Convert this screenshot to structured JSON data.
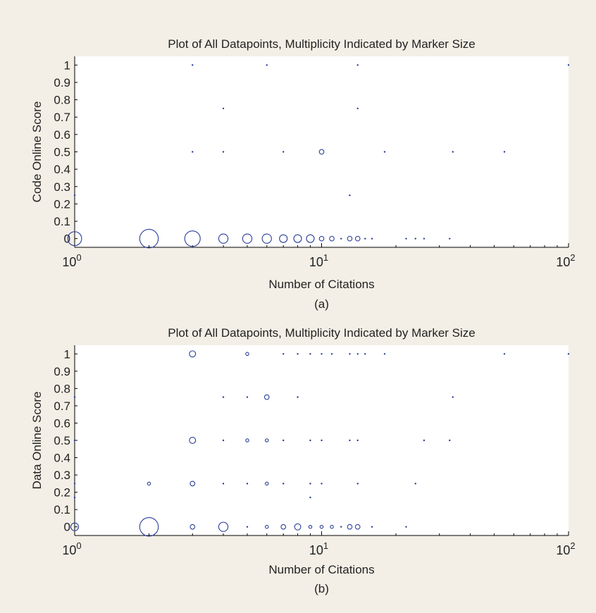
{
  "figure": {
    "background": "#f3efe6",
    "axes_background": "#ffffff",
    "marker_color": "#2a3f9a"
  },
  "chart_data": [
    {
      "id": "a",
      "type": "scatter",
      "title": "Plot of All Datapoints, Multiplicity Indicated by Marker Size",
      "xlabel": "Number of Citations",
      "ylabel": "Code Online Score",
      "caption": "(a)",
      "xscale": "log",
      "xlim": [
        1,
        100
      ],
      "ylim": [
        -0.05,
        1.05
      ],
      "xticks": [
        {
          "value": 1,
          "base": "10",
          "exp": "0"
        },
        {
          "value": 10,
          "base": "10",
          "exp": "1"
        },
        {
          "value": 100,
          "base": "10",
          "exp": "2"
        }
      ],
      "yticks": [
        "0",
        "0.1",
        "0.2",
        "0.3",
        "0.4",
        "0.5",
        "0.6",
        "0.7",
        "0.8",
        "0.9",
        "1"
      ],
      "grid": false,
      "legend": "none",
      "marker_size_meaning": "multiplicity",
      "points": [
        {
          "x": 3,
          "y": 1,
          "n": 1
        },
        {
          "x": 6,
          "y": 1,
          "n": 1
        },
        {
          "x": 14,
          "y": 1,
          "n": 1
        },
        {
          "x": 100,
          "y": 1,
          "n": 1
        },
        {
          "x": 4,
          "y": 0.75,
          "n": 1
        },
        {
          "x": 14,
          "y": 0.75,
          "n": 1
        },
        {
          "x": 3,
          "y": 0.5,
          "n": 1
        },
        {
          "x": 4,
          "y": 0.5,
          "n": 1
        },
        {
          "x": 7,
          "y": 0.5,
          "n": 1
        },
        {
          "x": 10,
          "y": 0.5,
          "n": 3
        },
        {
          "x": 18,
          "y": 0.5,
          "n": 1
        },
        {
          "x": 34,
          "y": 0.5,
          "n": 1
        },
        {
          "x": 55,
          "y": 0.5,
          "n": 1
        },
        {
          "x": 1,
          "y": 0.25,
          "n": 1
        },
        {
          "x": 13,
          "y": 0.25,
          "n": 1
        },
        {
          "x": 1,
          "y": 0,
          "n": 9
        },
        {
          "x": 2,
          "y": 0,
          "n": 12
        },
        {
          "x": 3,
          "y": 0,
          "n": 10
        },
        {
          "x": 4,
          "y": 0,
          "n": 6
        },
        {
          "x": 5,
          "y": 0,
          "n": 6
        },
        {
          "x": 6,
          "y": 0,
          "n": 6
        },
        {
          "x": 7,
          "y": 0,
          "n": 5
        },
        {
          "x": 8,
          "y": 0,
          "n": 5
        },
        {
          "x": 9,
          "y": 0,
          "n": 5
        },
        {
          "x": 10,
          "y": 0,
          "n": 3
        },
        {
          "x": 11,
          "y": 0,
          "n": 3
        },
        {
          "x": 12,
          "y": 0,
          "n": 1
        },
        {
          "x": 13,
          "y": 0,
          "n": 3
        },
        {
          "x": 14,
          "y": 0,
          "n": 3
        },
        {
          "x": 15,
          "y": 0,
          "n": 1
        },
        {
          "x": 16,
          "y": 0,
          "n": 1
        },
        {
          "x": 22,
          "y": 0,
          "n": 1
        },
        {
          "x": 24,
          "y": 0,
          "n": 1
        },
        {
          "x": 26,
          "y": 0,
          "n": 1
        },
        {
          "x": 33,
          "y": 0,
          "n": 1
        }
      ]
    },
    {
      "id": "b",
      "type": "scatter",
      "title": "Plot of All Datapoints, Multiplicity Indicated by Marker Size",
      "xlabel": "Number of Citations",
      "ylabel": "Data Online Score",
      "caption": "(b)",
      "xscale": "log",
      "xlim": [
        1,
        100
      ],
      "ylim": [
        -0.05,
        1.05
      ],
      "xticks": [
        {
          "value": 1,
          "base": "10",
          "exp": "0"
        },
        {
          "value": 10,
          "base": "10",
          "exp": "1"
        },
        {
          "value": 100,
          "base": "10",
          "exp": "2"
        }
      ],
      "yticks": [
        "0",
        "0.1",
        "0.2",
        "0.3",
        "0.4",
        "0.5",
        "0.6",
        "0.7",
        "0.8",
        "0.9",
        "1"
      ],
      "grid": false,
      "legend": "none",
      "marker_size_meaning": "multiplicity",
      "points": [
        {
          "x": 3,
          "y": 1,
          "n": 4
        },
        {
          "x": 5,
          "y": 1,
          "n": 2
        },
        {
          "x": 7,
          "y": 1,
          "n": 1
        },
        {
          "x": 8,
          "y": 1,
          "n": 1
        },
        {
          "x": 9,
          "y": 1,
          "n": 1
        },
        {
          "x": 10,
          "y": 1,
          "n": 1
        },
        {
          "x": 11,
          "y": 1,
          "n": 1
        },
        {
          "x": 13,
          "y": 1,
          "n": 1
        },
        {
          "x": 14,
          "y": 1,
          "n": 1
        },
        {
          "x": 15,
          "y": 1,
          "n": 1
        },
        {
          "x": 18,
          "y": 1,
          "n": 1
        },
        {
          "x": 55,
          "y": 1,
          "n": 1
        },
        {
          "x": 100,
          "y": 1,
          "n": 1
        },
        {
          "x": 1,
          "y": 0.75,
          "n": 1
        },
        {
          "x": 4,
          "y": 0.75,
          "n": 1
        },
        {
          "x": 5,
          "y": 0.75,
          "n": 1
        },
        {
          "x": 6,
          "y": 0.75,
          "n": 3
        },
        {
          "x": 8,
          "y": 0.75,
          "n": 1
        },
        {
          "x": 34,
          "y": 0.75,
          "n": 1
        },
        {
          "x": 1,
          "y": 0.5,
          "n": 1
        },
        {
          "x": 3,
          "y": 0.5,
          "n": 4
        },
        {
          "x": 4,
          "y": 0.5,
          "n": 1
        },
        {
          "x": 5,
          "y": 0.5,
          "n": 2
        },
        {
          "x": 6,
          "y": 0.5,
          "n": 2
        },
        {
          "x": 7,
          "y": 0.5,
          "n": 1
        },
        {
          "x": 9,
          "y": 0.5,
          "n": 1
        },
        {
          "x": 10,
          "y": 0.5,
          "n": 1
        },
        {
          "x": 13,
          "y": 0.5,
          "n": 1
        },
        {
          "x": 14,
          "y": 0.5,
          "n": 1
        },
        {
          "x": 26,
          "y": 0.5,
          "n": 1
        },
        {
          "x": 33,
          "y": 0.5,
          "n": 1
        },
        {
          "x": 1,
          "y": 0.25,
          "n": 1
        },
        {
          "x": 2,
          "y": 0.25,
          "n": 2
        },
        {
          "x": 3,
          "y": 0.25,
          "n": 3
        },
        {
          "x": 4,
          "y": 0.25,
          "n": 1
        },
        {
          "x": 5,
          "y": 0.25,
          "n": 1
        },
        {
          "x": 6,
          "y": 0.25,
          "n": 2
        },
        {
          "x": 7,
          "y": 0.25,
          "n": 1
        },
        {
          "x": 9,
          "y": 0.25,
          "n": 1
        },
        {
          "x": 10,
          "y": 0.25,
          "n": 1
        },
        {
          "x": 14,
          "y": 0.25,
          "n": 1
        },
        {
          "x": 24,
          "y": 0.25,
          "n": 1
        },
        {
          "x": 1,
          "y": 0.17,
          "n": 1
        },
        {
          "x": 9,
          "y": 0.17,
          "n": 1
        },
        {
          "x": 1,
          "y": 0,
          "n": 5
        },
        {
          "x": 2,
          "y": 0,
          "n": 12
        },
        {
          "x": 3,
          "y": 0,
          "n": 3
        },
        {
          "x": 4,
          "y": 0,
          "n": 6
        },
        {
          "x": 5,
          "y": 0,
          "n": 1
        },
        {
          "x": 6,
          "y": 0,
          "n": 2
        },
        {
          "x": 7,
          "y": 0,
          "n": 3
        },
        {
          "x": 8,
          "y": 0,
          "n": 4
        },
        {
          "x": 9,
          "y": 0,
          "n": 2
        },
        {
          "x": 10,
          "y": 0,
          "n": 2
        },
        {
          "x": 11,
          "y": 0,
          "n": 2
        },
        {
          "x": 12,
          "y": 0,
          "n": 1
        },
        {
          "x": 13,
          "y": 0,
          "n": 3
        },
        {
          "x": 14,
          "y": 0,
          "n": 3
        },
        {
          "x": 16,
          "y": 0,
          "n": 1
        },
        {
          "x": 22,
          "y": 0,
          "n": 1
        }
      ]
    }
  ]
}
